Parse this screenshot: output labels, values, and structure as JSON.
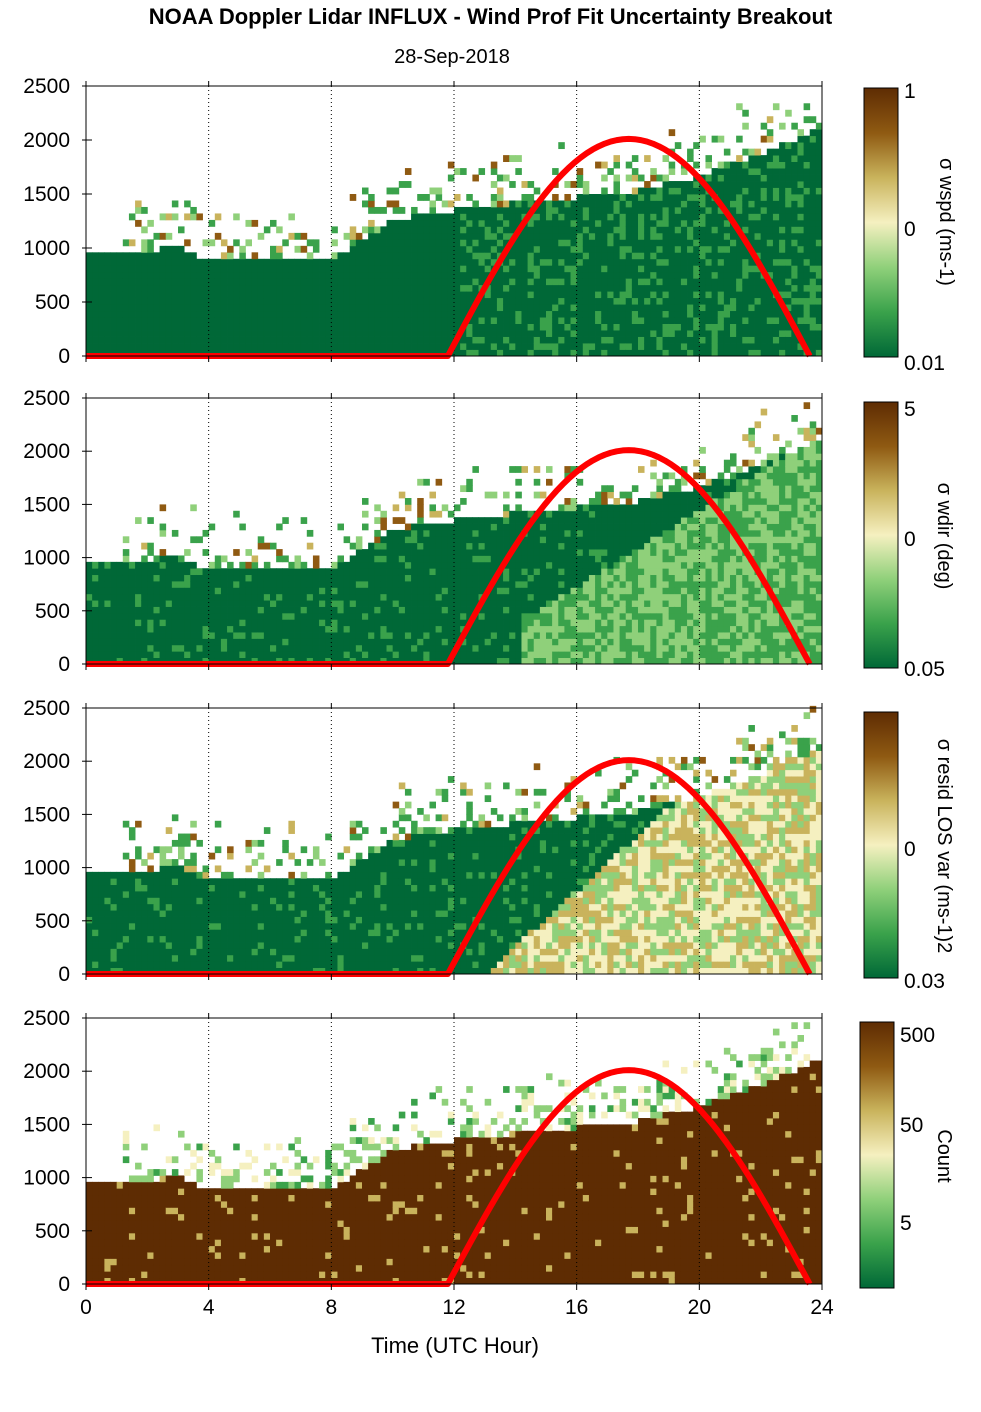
{
  "figure": {
    "title": "NOAA Doppler Lidar INFLUX - Wind Prof Fit Uncertainty Breakout",
    "date": "28-Sep-2018",
    "xlabel": "Time (UTC Hour)"
  },
  "colors": {
    "background": "#ffffff",
    "curve": "#ff0000",
    "colormap": [
      "#006837",
      "#3aa24b",
      "#8fd07a",
      "#f5f0c0",
      "#c9b35c",
      "#8f5a12",
      "#5e2c03"
    ]
  },
  "chart_data": [
    {
      "type": "heatmap",
      "name": "panel-wspd",
      "colorbar_label": "σ wspd (ms-1)",
      "colorbar_ticks": [
        "1",
        "0",
        "0.01"
      ],
      "xlim": [
        0,
        24
      ],
      "xticks": [
        "0",
        "4",
        "8",
        "12",
        "16",
        "20",
        "24"
      ],
      "ylim": [
        0,
        2500
      ],
      "yticks": [
        "0",
        "500",
        "1000",
        "1500",
        "2000",
        "2500"
      ],
      "boundary_height": [
        [
          0,
          980
        ],
        [
          2,
          1000
        ],
        [
          3,
          1040
        ],
        [
          4,
          900
        ],
        [
          6,
          950
        ],
        [
          8,
          930
        ],
        [
          9,
          1100
        ],
        [
          10,
          1300
        ],
        [
          12,
          1380
        ],
        [
          14,
          1450
        ],
        [
          16,
          1500
        ],
        [
          18,
          1560
        ],
        [
          20,
          1700
        ],
        [
          22,
          1900
        ],
        [
          23.6,
          2100
        ]
      ],
      "sun_curve": {
        "start": 11.8,
        "end": 23.6,
        "peak_x": 17.6,
        "peak_y": 2010
      }
    },
    {
      "type": "heatmap",
      "name": "panel-wdir",
      "colorbar_label": "σ wdir (deg)",
      "colorbar_ticks": [
        "5",
        "0",
        "0.05"
      ],
      "xlim": [
        0,
        24
      ],
      "xticks": [
        "0",
        "4",
        "8",
        "12",
        "16",
        "20",
        "24"
      ],
      "ylim": [
        0,
        2500
      ],
      "yticks": [
        "0",
        "500",
        "1000",
        "1500",
        "2000",
        "2500"
      ],
      "boundary_height": [
        [
          0,
          980
        ],
        [
          2,
          1000
        ],
        [
          3,
          1040
        ],
        [
          4,
          900
        ],
        [
          6,
          950
        ],
        [
          8,
          930
        ],
        [
          9,
          1100
        ],
        [
          10,
          1300
        ],
        [
          12,
          1380
        ],
        [
          14,
          1450
        ],
        [
          16,
          1500
        ],
        [
          18,
          1560
        ],
        [
          20,
          1700
        ],
        [
          22,
          1900
        ],
        [
          23.6,
          2100
        ]
      ],
      "sun_curve": {
        "start": 11.8,
        "end": 23.6,
        "peak_x": 17.6,
        "peak_y": 2010
      }
    },
    {
      "type": "heatmap",
      "name": "panel-resid",
      "colorbar_label": "σ resid LOS var (ms-1)2",
      "colorbar_ticks": [
        "0",
        "0.03"
      ],
      "xlim": [
        0,
        24
      ],
      "xticks": [
        "0",
        "4",
        "8",
        "12",
        "16",
        "20",
        "24"
      ],
      "ylim": [
        0,
        2500
      ],
      "yticks": [
        "0",
        "500",
        "1000",
        "1500",
        "2000",
        "2500"
      ],
      "boundary_height": [
        [
          0,
          980
        ],
        [
          2,
          1000
        ],
        [
          3,
          1040
        ],
        [
          4,
          900
        ],
        [
          6,
          950
        ],
        [
          8,
          930
        ],
        [
          9,
          1100
        ],
        [
          10,
          1300
        ],
        [
          12,
          1380
        ],
        [
          14,
          1450
        ],
        [
          16,
          1500
        ],
        [
          18,
          1560
        ],
        [
          20,
          1700
        ],
        [
          22,
          1900
        ],
        [
          23.6,
          2100
        ]
      ],
      "sun_curve": {
        "start": 11.8,
        "end": 23.6,
        "peak_x": 17.6,
        "peak_y": 2010
      }
    },
    {
      "type": "heatmap",
      "name": "panel-count",
      "colorbar_label": "Count",
      "colorbar_ticks": [
        "500",
        "50",
        "5"
      ],
      "xlim": [
        0,
        24
      ],
      "xticks": [
        "0",
        "4",
        "8",
        "12",
        "16",
        "20",
        "24"
      ],
      "ylim": [
        0,
        2500
      ],
      "yticks": [
        "0",
        "500",
        "1000",
        "1500",
        "2000",
        "2500"
      ],
      "boundary_height": [
        [
          0,
          980
        ],
        [
          2,
          1000
        ],
        [
          3,
          1040
        ],
        [
          4,
          900
        ],
        [
          6,
          950
        ],
        [
          8,
          930
        ],
        [
          9,
          1100
        ],
        [
          10,
          1300
        ],
        [
          12,
          1380
        ],
        [
          14,
          1450
        ],
        [
          16,
          1500
        ],
        [
          18,
          1560
        ],
        [
          20,
          1700
        ],
        [
          22,
          1900
        ],
        [
          23.6,
          2100
        ]
      ],
      "sun_curve": {
        "start": 11.8,
        "end": 23.6,
        "peak_x": 17.6,
        "peak_y": 2010
      }
    }
  ]
}
